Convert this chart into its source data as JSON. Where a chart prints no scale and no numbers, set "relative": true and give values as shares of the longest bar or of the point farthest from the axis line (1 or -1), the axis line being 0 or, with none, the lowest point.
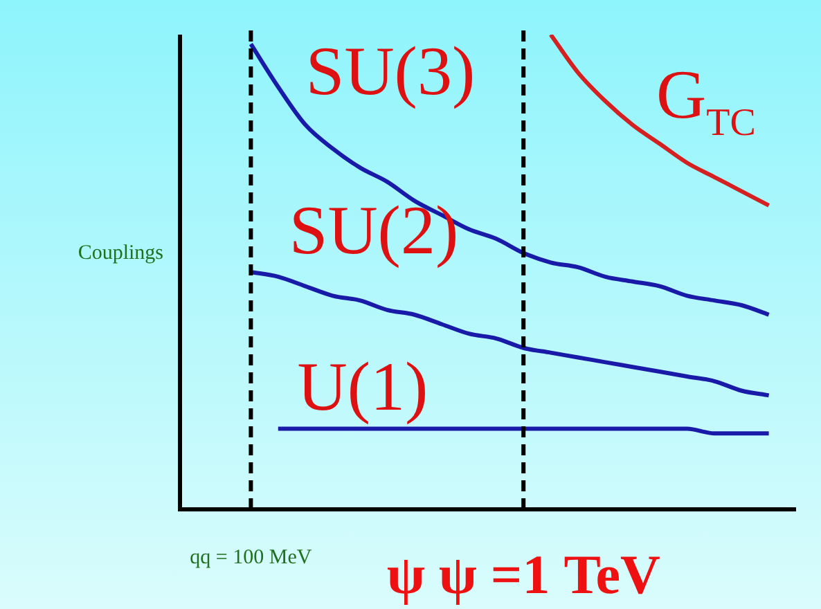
{
  "chart_data": {
    "type": "line",
    "relative": true,
    "ylabel": "Couplings",
    "categories": [
      "qq = 100 MeV",
      null,
      null,
      null,
      null,
      null,
      null,
      null,
      null,
      null,
      "ψ ψ =1 TeV",
      null,
      null,
      null,
      null,
      null,
      null,
      null,
      null,
      null
    ],
    "series": [
      {
        "name": "SU(3)",
        "color": "#1a1aa8",
        "values": [
          0.98,
          0.89,
          0.81,
          0.76,
          0.72,
          0.69,
          0.65,
          0.62,
          0.59,
          0.57,
          0.54,
          0.52,
          0.51,
          0.49,
          0.48,
          0.47,
          0.45,
          0.44,
          0.43,
          0.41
        ]
      },
      {
        "name": "SU(2)",
        "color": "#1a1aa8",
        "values": [
          0.5,
          0.49,
          0.47,
          0.45,
          0.44,
          0.42,
          0.41,
          0.39,
          0.37,
          0.36,
          0.34,
          0.33,
          0.32,
          0.31,
          0.3,
          0.29,
          0.28,
          0.27,
          0.25,
          0.24
        ]
      },
      {
        "name": "U(1)",
        "color": "#1a1aa8",
        "values": [
          null,
          0.17,
          0.17,
          0.17,
          0.17,
          0.17,
          0.17,
          0.17,
          0.17,
          0.17,
          0.17,
          0.17,
          0.17,
          0.17,
          0.17,
          0.17,
          0.17,
          0.16,
          0.16,
          0.16
        ]
      },
      {
        "name": "G$_{TC}$",
        "color": "#d42020",
        "values": [
          null,
          null,
          null,
          null,
          null,
          null,
          null,
          null,
          null,
          null,
          null,
          1,
          0.92,
          0.86,
          0.81,
          0.77,
          0.73,
          0.7,
          0.67,
          0.64
        ]
      }
    ],
    "ref_lines": [
      {
        "axis": "x",
        "value": "qq = 100 MeV",
        "color": "#000000",
        "line_style": "dashed"
      },
      {
        "axis": "x",
        "value": "ψ ψ =1 TeV",
        "color": "#000000",
        "line_style": "dashed"
      }
    ],
    "grid": false,
    "legend": false,
    "marker": "none",
    "line_style": "solid"
  }
}
